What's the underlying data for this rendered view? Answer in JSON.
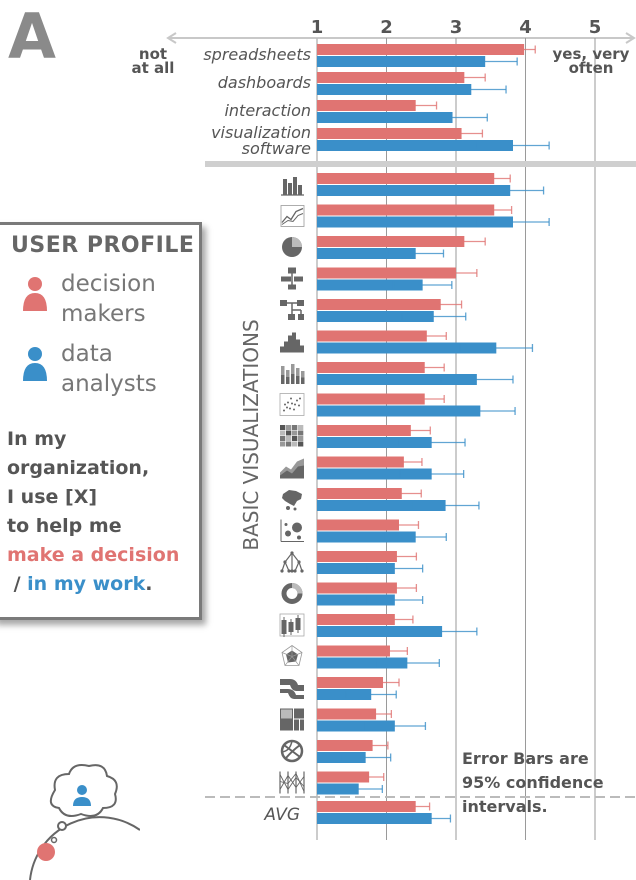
{
  "panel_label": "A",
  "axis": {
    "left_end": "not at all",
    "right_end": "yes, very often"
  },
  "section_label": "BASIC VISUALIZATIONS",
  "avg_label": "AVG",
  "legend": {
    "title": "USER PROFILE",
    "decision": "decision makers",
    "analysts": "data analysts"
  },
  "statement": {
    "line1": "In my",
    "line2": "organization,",
    "line3": "I use [X]",
    "line4": "to help me",
    "highlight_red": "make a decision",
    "sep": " / ",
    "highlight_blue": "in my work",
    "end": "."
  },
  "note": "Error Bars are 95% confidence intervals.",
  "colors": {
    "decision": "#e07472",
    "analyst": "#3a8fc9",
    "grid": "#c8c8c8",
    "text": "#555555"
  },
  "chart_data": {
    "type": "bar",
    "orientation": "horizontal",
    "x_ticks": [
      1,
      2,
      3,
      4,
      5
    ],
    "xlim": [
      1,
      5.2
    ],
    "tools": [
      {
        "label": "spreadsheets",
        "decision": 3.98,
        "d_ci": [
          3.82,
          4.14
        ],
        "analyst": 3.42,
        "a_ci": [
          2.96,
          3.88
        ]
      },
      {
        "label": "dashboards",
        "decision": 3.12,
        "d_ci": [
          2.82,
          3.42
        ],
        "analyst": 3.22,
        "a_ci": [
          2.72,
          3.72
        ]
      },
      {
        "label": "interaction",
        "decision": 2.42,
        "d_ci": [
          2.12,
          2.72
        ],
        "analyst": 2.95,
        "a_ci": [
          2.45,
          3.45
        ]
      },
      {
        "label": "visualization software",
        "decision": 3.08,
        "d_ci": [
          2.78,
          3.38
        ],
        "analyst": 3.82,
        "a_ci": [
          3.3,
          4.34
        ]
      }
    ],
    "charts": [
      {
        "icon": "bar-chart-icon",
        "decision": 3.55,
        "d_ci": [
          3.35,
          3.78
        ],
        "analyst": 3.78,
        "a_ci": [
          3.3,
          4.26
        ]
      },
      {
        "icon": "line-chart-icon",
        "decision": 3.55,
        "d_ci": [
          3.33,
          3.8
        ],
        "analyst": 3.82,
        "a_ci": [
          3.3,
          4.34
        ]
      },
      {
        "icon": "pie-chart-icon",
        "decision": 3.12,
        "d_ci": [
          2.82,
          3.42
        ],
        "analyst": 2.42,
        "a_ci": [
          2.02,
          2.82
        ]
      },
      {
        "icon": "flowchart-icon",
        "decision": 3.0,
        "d_ci": [
          2.7,
          3.3
        ],
        "analyst": 2.52,
        "a_ci": [
          2.1,
          2.94
        ]
      },
      {
        "icon": "network-chart-icon",
        "decision": 2.78,
        "d_ci": [
          2.48,
          3.08
        ],
        "analyst": 2.68,
        "a_ci": [
          2.22,
          3.14
        ]
      },
      {
        "icon": "histogram-icon",
        "decision": 2.58,
        "d_ci": [
          2.3,
          2.86
        ],
        "analyst": 3.58,
        "a_ci": [
          3.06,
          4.1
        ]
      },
      {
        "icon": "stacked-bar-icon",
        "decision": 2.55,
        "d_ci": [
          2.27,
          2.83
        ],
        "analyst": 3.3,
        "a_ci": [
          2.78,
          3.82
        ]
      },
      {
        "icon": "scatter-plot-icon",
        "decision": 2.55,
        "d_ci": [
          2.27,
          2.83
        ],
        "analyst": 3.35,
        "a_ci": [
          2.85,
          3.85
        ]
      },
      {
        "icon": "heatmap-icon",
        "decision": 2.35,
        "d_ci": [
          2.07,
          2.63
        ],
        "analyst": 2.65,
        "a_ci": [
          2.17,
          3.13
        ]
      },
      {
        "icon": "area-chart-icon",
        "decision": 2.25,
        "d_ci": [
          1.99,
          2.51
        ],
        "analyst": 2.65,
        "a_ci": [
          2.19,
          3.11
        ]
      },
      {
        "icon": "map-icon",
        "decision": 2.22,
        "d_ci": [
          1.94,
          2.5
        ],
        "analyst": 2.85,
        "a_ci": [
          2.37,
          3.33
        ]
      },
      {
        "icon": "bubble-chart-icon",
        "decision": 2.18,
        "d_ci": [
          1.9,
          2.46
        ],
        "analyst": 2.42,
        "a_ci": [
          1.98,
          2.86
        ]
      },
      {
        "icon": "tree-diagram-icon",
        "decision": 2.15,
        "d_ci": [
          1.87,
          2.43
        ],
        "analyst": 2.12,
        "a_ci": [
          1.72,
          2.52
        ]
      },
      {
        "icon": "donut-chart-icon",
        "decision": 2.15,
        "d_ci": [
          1.87,
          2.43
        ],
        "analyst": 2.12,
        "a_ci": [
          1.72,
          2.52
        ]
      },
      {
        "icon": "box-plot-icon",
        "decision": 2.12,
        "d_ci": [
          1.86,
          2.38
        ],
        "analyst": 2.8,
        "a_ci": [
          2.3,
          3.3
        ]
      },
      {
        "icon": "radar-chart-icon",
        "decision": 2.05,
        "d_ci": [
          1.8,
          2.3
        ],
        "analyst": 2.3,
        "a_ci": [
          1.84,
          2.76
        ]
      },
      {
        "icon": "sankey-icon",
        "decision": 1.95,
        "d_ci": [
          1.72,
          2.18
        ],
        "analyst": 1.78,
        "a_ci": [
          1.42,
          2.14
        ]
      },
      {
        "icon": "treemap-icon",
        "decision": 1.85,
        "d_ci": [
          1.63,
          2.07
        ],
        "analyst": 2.12,
        "a_ci": [
          1.68,
          2.56
        ]
      },
      {
        "icon": "chord-diagram-icon",
        "decision": 1.8,
        "d_ci": [
          1.58,
          2.02
        ],
        "analyst": 1.7,
        "a_ci": [
          1.34,
          2.06
        ]
      },
      {
        "icon": "parallel-coords-icon",
        "decision": 1.75,
        "d_ci": [
          1.54,
          1.96
        ],
        "analyst": 1.6,
        "a_ci": [
          1.26,
          1.94
        ]
      }
    ],
    "avg": {
      "label": "AVG",
      "decision": 2.42,
      "d_ci": [
        2.22,
        2.62
      ],
      "analyst": 2.65,
      "a_ci": [
        2.38,
        2.92
      ]
    }
  }
}
